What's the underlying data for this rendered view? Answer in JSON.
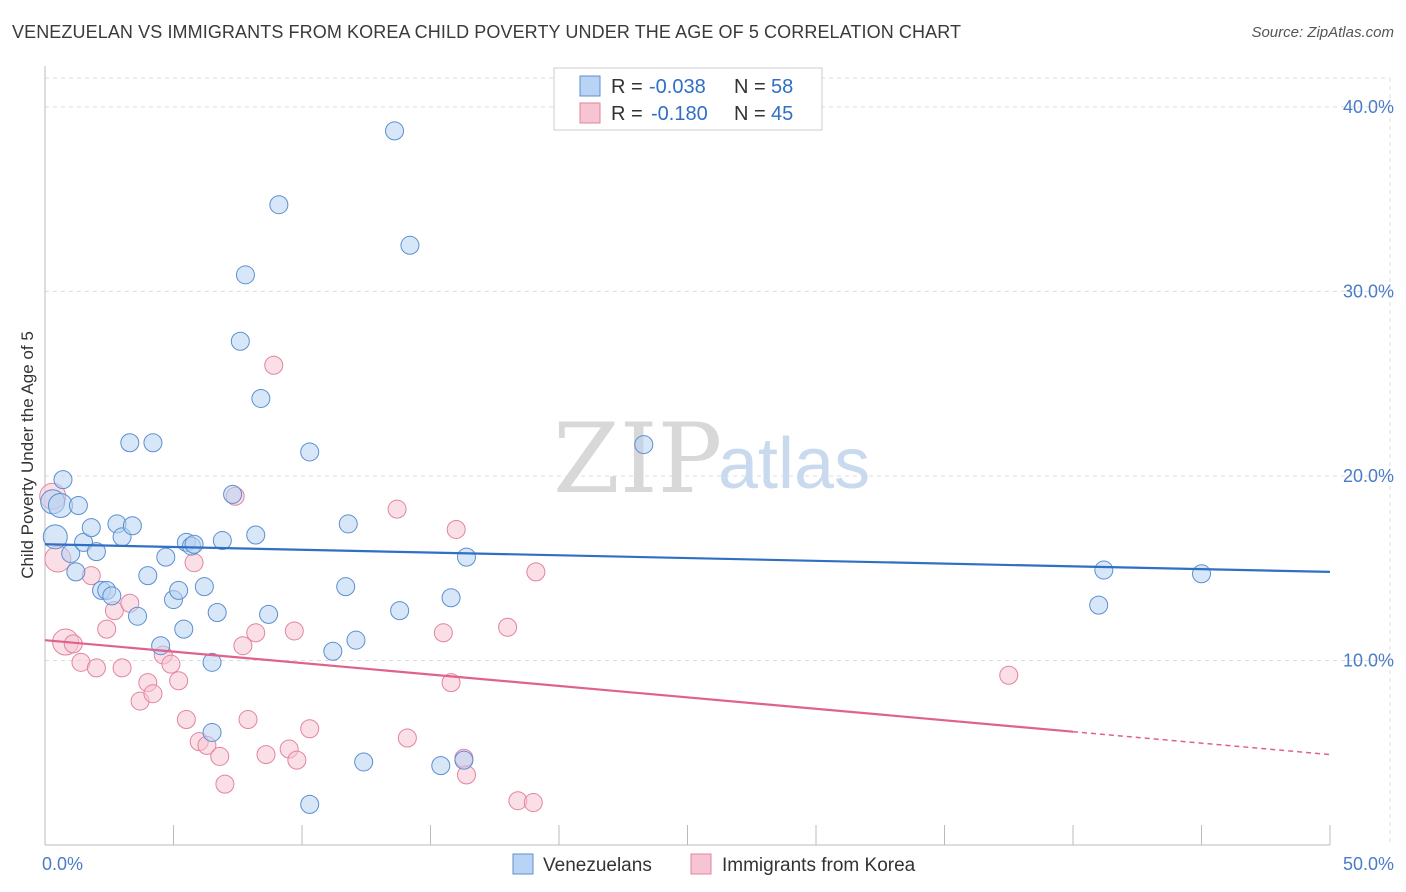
{
  "header": {
    "title": "VENEZUELAN VS IMMIGRANTS FROM KOREA CHILD POVERTY UNDER THE AGE OF 5 CORRELATION CHART",
    "source": "Source: ZipAtlas.com"
  },
  "watermark": {
    "zip": "ZIP",
    "atlas": "atlas"
  },
  "legend_top": [
    {
      "r_label": "R =",
      "r_value": "-0.038",
      "n_label": "N =",
      "n_value": "58"
    },
    {
      "r_label": "R =",
      "r_value": "-0.180",
      "n_label": "N =",
      "n_value": "45"
    }
  ],
  "legend_bottom": [
    "Venezuelans",
    "Immigrants from Korea"
  ],
  "colors": {
    "blue_fill": "#b8d3f3",
    "blue_stroke": "#5b8fd1",
    "blue_line": "#2f6fc4",
    "pink_fill": "#f7c4d3",
    "pink_stroke": "#e2849f",
    "pink_line": "#e0628c",
    "grid": "#dddddd",
    "tick_label": "#4a7cc7"
  },
  "chart_data": {
    "type": "scatter",
    "title": "VENEZUELAN VS IMMIGRANTS FROM KOREA CHILD POVERTY UNDER THE AGE OF 5 CORRELATION CHART",
    "xlabel": "",
    "ylabel": "Child Poverty Under the Age of 5",
    "xlim": [
      0,
      50
    ],
    "ylim": [
      0,
      42
    ],
    "x_tick_labels": [
      "0.0%",
      "50.0%"
    ],
    "y_ticks": [
      10,
      20,
      30,
      40
    ],
    "y_tick_labels": [
      "10.0%",
      "20.0%",
      "30.0%",
      "40.0%"
    ],
    "grid": true,
    "legend_position": "top-center",
    "series": [
      {
        "name": "Venezuelans",
        "r": -0.038,
        "n": 58,
        "trend": {
          "x": [
            0,
            50
          ],
          "y": [
            16.3,
            14.8
          ],
          "dashed_from": null
        },
        "points": [
          [
            0.3,
            18.6
          ],
          [
            0.4,
            16.7
          ],
          [
            0.6,
            18.4
          ],
          [
            0.7,
            19.8
          ],
          [
            1.0,
            15.8
          ],
          [
            1.2,
            14.8
          ],
          [
            1.3,
            18.4
          ],
          [
            1.5,
            16.4
          ],
          [
            1.8,
            17.2
          ],
          [
            2.0,
            15.9
          ],
          [
            2.2,
            13.8
          ],
          [
            2.4,
            13.8
          ],
          [
            2.6,
            13.5
          ],
          [
            2.8,
            17.4
          ],
          [
            3.0,
            16.7
          ],
          [
            3.3,
            21.8
          ],
          [
            3.4,
            17.3
          ],
          [
            3.6,
            12.4
          ],
          [
            4.0,
            14.6
          ],
          [
            4.2,
            21.8
          ],
          [
            4.5,
            10.8
          ],
          [
            4.7,
            15.6
          ],
          [
            5.0,
            13.3
          ],
          [
            5.2,
            13.8
          ],
          [
            5.4,
            11.7
          ],
          [
            5.5,
            16.4
          ],
          [
            5.7,
            16.2
          ],
          [
            5.8,
            16.3
          ],
          [
            6.2,
            14.0
          ],
          [
            6.5,
            9.9
          ],
          [
            6.5,
            6.1
          ],
          [
            6.7,
            12.6
          ],
          [
            6.9,
            16.5
          ],
          [
            7.3,
            19.0
          ],
          [
            7.6,
            27.3
          ],
          [
            7.8,
            30.9
          ],
          [
            8.2,
            16.8
          ],
          [
            8.4,
            24.2
          ],
          [
            8.7,
            12.5
          ],
          [
            9.1,
            34.7
          ],
          [
            10.3,
            21.3
          ],
          [
            10.3,
            2.2
          ],
          [
            11.2,
            10.5
          ],
          [
            11.7,
            14.0
          ],
          [
            11.8,
            17.4
          ],
          [
            12.1,
            11.1
          ],
          [
            12.4,
            4.5
          ],
          [
            13.6,
            38.7
          ],
          [
            13.8,
            12.7
          ],
          [
            14.2,
            32.5
          ],
          [
            15.4,
            4.3
          ],
          [
            15.8,
            13.4
          ],
          [
            16.3,
            4.6
          ],
          [
            16.4,
            15.6
          ],
          [
            23.3,
            21.7
          ],
          [
            41.0,
            13.0
          ],
          [
            41.2,
            14.9
          ],
          [
            45.0,
            14.7
          ]
        ]
      },
      {
        "name": "Immigrants from Korea",
        "r": -0.18,
        "n": 45,
        "trend": {
          "x": [
            0,
            50
          ],
          "y": [
            11.1,
            4.9
          ],
          "dashed_from": 40
        },
        "points": [
          [
            0.3,
            18.9
          ],
          [
            0.5,
            15.5
          ],
          [
            0.8,
            11.0
          ],
          [
            1.1,
            10.9
          ],
          [
            1.4,
            9.9
          ],
          [
            1.8,
            14.6
          ],
          [
            2.0,
            9.6
          ],
          [
            2.4,
            11.7
          ],
          [
            2.7,
            12.7
          ],
          [
            3.0,
            9.6
          ],
          [
            3.3,
            13.1
          ],
          [
            3.7,
            7.8
          ],
          [
            4.0,
            8.8
          ],
          [
            4.2,
            8.2
          ],
          [
            4.6,
            10.3
          ],
          [
            4.9,
            9.8
          ],
          [
            5.2,
            8.9
          ],
          [
            5.5,
            6.8
          ],
          [
            5.8,
            15.3
          ],
          [
            6.0,
            5.6
          ],
          [
            6.3,
            5.4
          ],
          [
            6.8,
            4.8
          ],
          [
            7.0,
            3.3
          ],
          [
            7.4,
            18.9
          ],
          [
            7.7,
            10.8
          ],
          [
            7.9,
            6.8
          ],
          [
            8.2,
            11.5
          ],
          [
            8.6,
            4.9
          ],
          [
            8.9,
            26.0
          ],
          [
            9.5,
            5.2
          ],
          [
            9.7,
            11.6
          ],
          [
            9.8,
            4.6
          ],
          [
            10.3,
            6.3
          ],
          [
            13.7,
            18.2
          ],
          [
            14.1,
            5.8
          ],
          [
            15.5,
            11.5
          ],
          [
            15.8,
            8.8
          ],
          [
            16.0,
            17.1
          ],
          [
            16.3,
            4.7
          ],
          [
            16.4,
            3.8
          ],
          [
            18.0,
            11.8
          ],
          [
            18.4,
            2.4
          ],
          [
            19.0,
            2.3
          ],
          [
            19.1,
            14.8
          ],
          [
            37.5,
            9.2
          ]
        ]
      }
    ]
  }
}
